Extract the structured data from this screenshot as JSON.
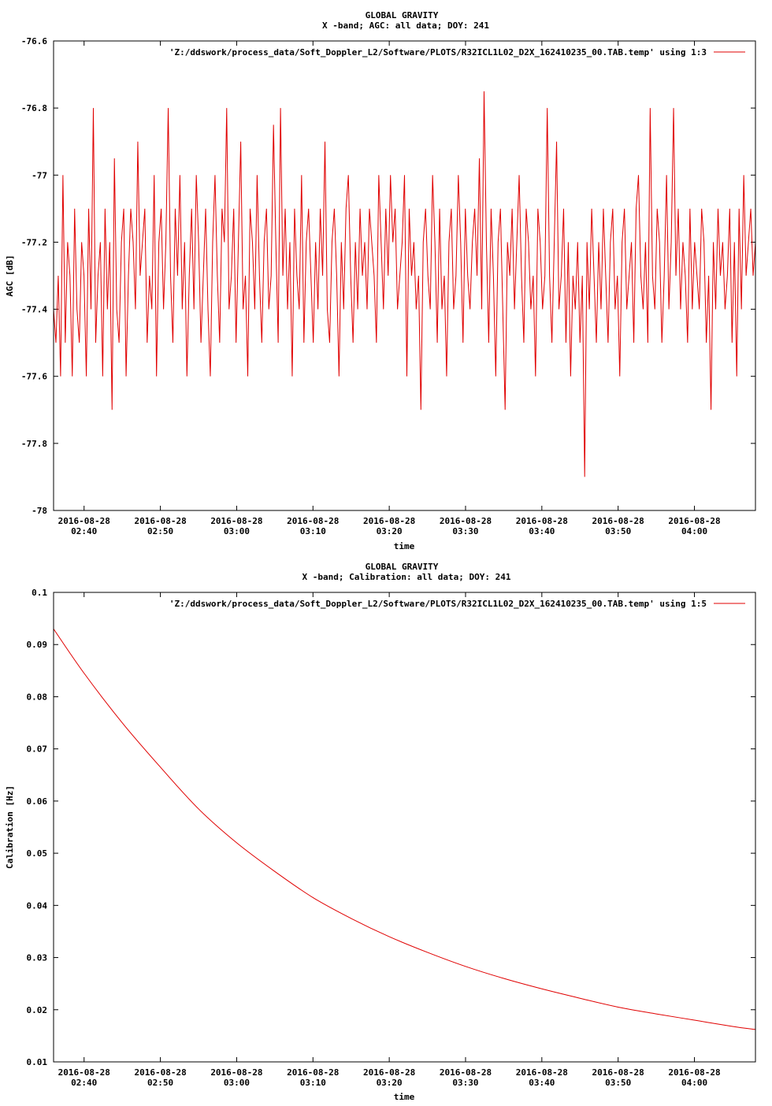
{
  "colors": {
    "series": "#e00000",
    "axis": "#000000",
    "background": "#ffffff"
  },
  "chart_data": [
    {
      "type": "line",
      "title": "GLOBAL GRAVITY",
      "subtitle": "X -band; AGC: all data; DOY: 241",
      "xlabel": "time",
      "ylabel": "AGC [dB]",
      "ylim": [
        -78,
        -76.6
      ],
      "yticks": [
        -78,
        -77.8,
        -77.6,
        -77.4,
        -77.2,
        -77,
        -76.8,
        -76.6
      ],
      "ytick_labels": [
        "-78",
        "-77.8",
        "-77.6",
        "-77.4",
        "-77.2",
        "-77",
        "-76.8",
        "-76.6"
      ],
      "xlim": [
        "2016-08-28 02:36",
        "2016-08-28 04:08"
      ],
      "xticks": [
        "2016-08-28 02:40",
        "2016-08-28 02:50",
        "2016-08-28 03:00",
        "2016-08-28 03:10",
        "2016-08-28 03:20",
        "2016-08-28 03:30",
        "2016-08-28 03:40",
        "2016-08-28 03:50",
        "2016-08-28 04:00"
      ],
      "xtick_dates": [
        "2016-08-28",
        "2016-08-28",
        "2016-08-28",
        "2016-08-28",
        "2016-08-28",
        "2016-08-28",
        "2016-08-28",
        "2016-08-28",
        "2016-08-28"
      ],
      "xtick_times": [
        "02:40",
        "02:50",
        "03:00",
        "03:10",
        "03:20",
        "03:30",
        "03:40",
        "03:50",
        "04:00"
      ],
      "legend": "top-right",
      "grid": false,
      "series": [
        {
          "name": "'Z:/ddswork/process_data/Soft_Doppler_L2/Software/PLOTS/R32ICL1L02_D2X_162410235_00.TAB.temp' using 1:3",
          "x_start": "2016-08-28 02:36",
          "x_end": "2016-08-28 04:08",
          "sampling": "uniform",
          "values": [
            -77.4,
            -77.5,
            -77.3,
            -77.6,
            -77.0,
            -77.5,
            -77.2,
            -77.3,
            -77.6,
            -77.1,
            -77.4,
            -77.5,
            -77.2,
            -77.3,
            -77.6,
            -77.1,
            -77.4,
            -76.8,
            -77.5,
            -77.3,
            -77.2,
            -77.6,
            -77.1,
            -77.4,
            -77.2,
            -77.7,
            -76.95,
            -77.4,
            -77.5,
            -77.2,
            -77.1,
            -77.6,
            -77.3,
            -77.1,
            -77.2,
            -77.4,
            -76.9,
            -77.3,
            -77.2,
            -77.1,
            -77.5,
            -77.3,
            -77.4,
            -77.0,
            -77.6,
            -77.2,
            -77.1,
            -77.4,
            -77.2,
            -76.8,
            -77.3,
            -77.5,
            -77.1,
            -77.3,
            -77.0,
            -77.4,
            -77.2,
            -77.6,
            -77.3,
            -77.1,
            -77.4,
            -77.0,
            -77.2,
            -77.5,
            -77.3,
            -77.1,
            -77.4,
            -77.6,
            -77.2,
            -77.0,
            -77.3,
            -77.5,
            -77.1,
            -77.2,
            -76.8,
            -77.4,
            -77.3,
            -77.1,
            -77.5,
            -77.2,
            -76.9,
            -77.4,
            -77.3,
            -77.6,
            -77.1,
            -77.2,
            -77.4,
            -77.0,
            -77.3,
            -77.5,
            -77.2,
            -77.1,
            -77.4,
            -77.3,
            -76.85,
            -77.2,
            -77.5,
            -76.8,
            -77.3,
            -77.1,
            -77.4,
            -77.2,
            -77.6,
            -77.1,
            -77.3,
            -77.4,
            -77.0,
            -77.5,
            -77.2,
            -77.1,
            -77.3,
            -77.5,
            -77.2,
            -77.4,
            -77.1,
            -77.3,
            -76.9,
            -77.4,
            -77.5,
            -77.2,
            -77.1,
            -77.3,
            -77.6,
            -77.2,
            -77.4,
            -77.1,
            -77.0,
            -77.3,
            -77.5,
            -77.2,
            -77.4,
            -77.1,
            -77.3,
            -77.2,
            -77.4,
            -77.1,
            -77.2,
            -77.3,
            -77.5,
            -77.0,
            -77.2,
            -77.4,
            -77.1,
            -77.3,
            -77.0,
            -77.2,
            -77.1,
            -77.4,
            -77.3,
            -77.2,
            -77.0,
            -77.6,
            -77.1,
            -77.3,
            -77.2,
            -77.4,
            -77.3,
            -77.7,
            -77.2,
            -77.1,
            -77.3,
            -77.4,
            -77.0,
            -77.2,
            -77.5,
            -77.1,
            -77.4,
            -77.3,
            -77.6,
            -77.2,
            -77.1,
            -77.4,
            -77.3,
            -77.0,
            -77.2,
            -77.5,
            -77.1,
            -77.3,
            -77.4,
            -77.2,
            -77.1,
            -77.3,
            -76.95,
            -77.4,
            -76.75,
            -77.2,
            -77.5,
            -77.1,
            -77.3,
            -77.6,
            -77.2,
            -77.1,
            -77.4,
            -77.7,
            -77.2,
            -77.3,
            -77.1,
            -77.4,
            -77.2,
            -77.0,
            -77.3,
            -77.5,
            -77.1,
            -77.2,
            -77.4,
            -77.3,
            -77.6,
            -77.1,
            -77.2,
            -77.4,
            -77.3,
            -76.8,
            -77.3,
            -77.5,
            -77.2,
            -76.9,
            -77.4,
            -77.3,
            -77.1,
            -77.5,
            -77.2,
            -77.6,
            -77.3,
            -77.4,
            -77.2,
            -77.5,
            -77.3,
            -77.9,
            -77.2,
            -77.4,
            -77.1,
            -77.3,
            -77.5,
            -77.2,
            -77.4,
            -77.1,
            -77.3,
            -77.5,
            -77.2,
            -77.1,
            -77.4,
            -77.3,
            -77.6,
            -77.2,
            -77.1,
            -77.4,
            -77.3,
            -77.2,
            -77.5,
            -77.1,
            -77.0,
            -77.3,
            -77.4,
            -77.2,
            -77.5,
            -76.8,
            -77.3,
            -77.4,
            -77.1,
            -77.2,
            -77.5,
            -77.3,
            -77.0,
            -77.4,
            -77.2,
            -76.8,
            -77.3,
            -77.1,
            -77.4,
            -77.2,
            -77.3,
            -77.5,
            -77.1,
            -77.4,
            -77.2,
            -77.3,
            -77.4,
            -77.1,
            -77.2,
            -77.5,
            -77.3,
            -77.7,
            -77.2,
            -77.4,
            -77.1,
            -77.3,
            -77.2,
            -77.4,
            -77.3,
            -77.1,
            -77.5,
            -77.2,
            -77.6,
            -77.1,
            -77.4,
            -77.0,
            -77.3,
            -77.2,
            -77.1,
            -77.3,
            -77.2
          ]
        }
      ]
    },
    {
      "type": "line",
      "title": "GLOBAL GRAVITY",
      "subtitle": "X -band; Calibration: all data; DOY: 241",
      "xlabel": "time",
      "ylabel": "Calibration [Hz]",
      "ylim": [
        0.01,
        0.1
      ],
      "yticks": [
        0.01,
        0.02,
        0.03,
        0.04,
        0.05,
        0.06,
        0.07,
        0.08,
        0.09,
        0.1
      ],
      "ytick_labels": [
        "0.01",
        "0.02",
        "0.03",
        "0.04",
        "0.05",
        "0.06",
        "0.07",
        "0.08",
        "0.09",
        "0.1"
      ],
      "xlim": [
        "2016-08-28 02:36",
        "2016-08-28 04:08"
      ],
      "xticks": [
        "2016-08-28 02:40",
        "2016-08-28 02:50",
        "2016-08-28 03:00",
        "2016-08-28 03:10",
        "2016-08-28 03:20",
        "2016-08-28 03:30",
        "2016-08-28 03:40",
        "2016-08-28 03:50",
        "2016-08-28 04:00"
      ],
      "xtick_dates": [
        "2016-08-28",
        "2016-08-28",
        "2016-08-28",
        "2016-08-28",
        "2016-08-28",
        "2016-08-28",
        "2016-08-28",
        "2016-08-28",
        "2016-08-28"
      ],
      "xtick_times": [
        "02:40",
        "02:50",
        "03:00",
        "03:10",
        "03:20",
        "03:30",
        "03:40",
        "03:50",
        "04:00"
      ],
      "legend": "top-right",
      "grid": false,
      "series": [
        {
          "name": "'Z:/ddswork/process_data/Soft_Doppler_L2/Software/PLOTS/R32ICL1L02_D2X_162410235_00.TAB.temp' using 1:5",
          "x": [
            "2016-08-28 02:36",
            "2016-08-28 02:40",
            "2016-08-28 02:45",
            "2016-08-28 02:50",
            "2016-08-28 02:55",
            "2016-08-28 03:00",
            "2016-08-28 03:05",
            "2016-08-28 03:10",
            "2016-08-28 03:15",
            "2016-08-28 03:20",
            "2016-08-28 03:25",
            "2016-08-28 03:30",
            "2016-08-28 03:35",
            "2016-08-28 03:40",
            "2016-08-28 03:45",
            "2016-08-28 03:50",
            "2016-08-28 03:55",
            "2016-08-28 04:00",
            "2016-08-28 04:05",
            "2016-08-28 04:08"
          ],
          "values": [
            0.093,
            0.0845,
            0.075,
            0.0665,
            0.0585,
            0.052,
            0.0465,
            0.0415,
            0.0375,
            0.034,
            0.031,
            0.0283,
            0.026,
            0.024,
            0.0222,
            0.0205,
            0.0192,
            0.018,
            0.0168,
            0.0162
          ]
        }
      ]
    }
  ]
}
